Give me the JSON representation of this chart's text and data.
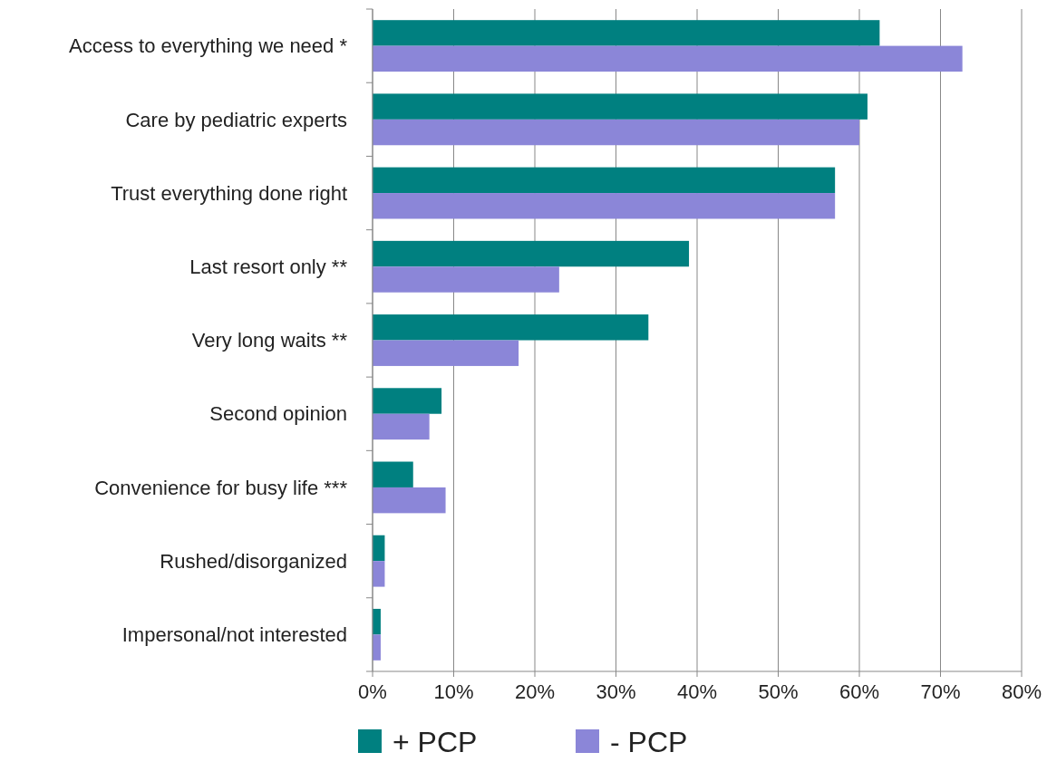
{
  "chart_data": {
    "type": "bar",
    "orientation": "horizontal",
    "categories": [
      "Access to everything we need *",
      "Care by pediatric experts",
      "Trust everything done right",
      "Last resort only **",
      "Very long waits **",
      "Second opinion",
      "Convenience for busy life ***",
      "Rushed/disorganized",
      "Impersonal/not interested"
    ],
    "series": [
      {
        "name": "+ PCP",
        "color": "#008080",
        "values": [
          62.5,
          61,
          57,
          39,
          34,
          8.5,
          5,
          1.5,
          1
        ]
      },
      {
        "name": "- PCP",
        "color": "#8b86d8",
        "values": [
          72.7,
          60,
          57,
          23,
          18,
          7,
          9,
          1.5,
          1
        ]
      }
    ],
    "xlim": [
      0,
      80
    ],
    "xticks": [
      {
        "value": 0,
        "label": "0%"
      },
      {
        "value": 10,
        "label": "10%"
      },
      {
        "value": 20,
        "label": "20%"
      },
      {
        "value": 30,
        "label": "30%"
      },
      {
        "value": 40,
        "label": "40%"
      },
      {
        "value": 50,
        "label": "50%"
      },
      {
        "value": 60,
        "label": "60%"
      },
      {
        "value": 70,
        "label": "70%"
      },
      {
        "value": 80,
        "label": "80%"
      }
    ],
    "grid": "x",
    "legend": "bottom"
  }
}
